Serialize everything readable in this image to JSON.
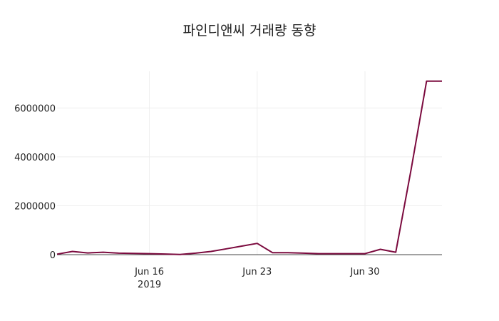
{
  "chart_data": {
    "type": "line",
    "title": "파인디앤씨 거래량 동향",
    "xlabel": "",
    "ylabel": "",
    "x_dates": [
      "2019-06-10",
      "2019-06-11",
      "2019-06-12",
      "2019-06-13",
      "2019-06-14",
      "2019-06-15",
      "2019-06-16",
      "2019-06-17",
      "2019-06-18",
      "2019-06-19",
      "2019-06-20",
      "2019-06-21",
      "2019-06-22",
      "2019-06-23",
      "2019-06-24",
      "2019-06-25",
      "2019-06-26",
      "2019-06-27",
      "2019-06-28",
      "2019-06-29",
      "2019-06-30",
      "2019-07-01",
      "2019-07-02",
      "2019-07-03",
      "2019-07-04",
      "2019-07-05"
    ],
    "series": [
      {
        "name": "거래량",
        "color": "#7b0a3e",
        "values": [
          20000,
          130000,
          70000,
          100000,
          60000,
          50000,
          40000,
          25000,
          10000,
          60000,
          130000,
          240000,
          350000,
          460000,
          80000,
          80000,
          60000,
          40000,
          40000,
          40000,
          40000,
          220000,
          100000,
          3500000,
          7100000,
          7100000
        ]
      }
    ],
    "x_ticks": [
      {
        "date": "2019-06-16",
        "label": "Jun 16",
        "sublabel": "2019"
      },
      {
        "date": "2019-06-23",
        "label": "Jun 23",
        "sublabel": ""
      },
      {
        "date": "2019-06-30",
        "label": "Jun 30",
        "sublabel": ""
      }
    ],
    "y_ticks": [
      {
        "value": 0,
        "label": "0"
      },
      {
        "value": 2000000,
        "label": "2000000"
      },
      {
        "value": 4000000,
        "label": "4000000"
      },
      {
        "value": 6000000,
        "label": "6000000"
      }
    ],
    "xlim": [
      "2019-06-10",
      "2019-07-05"
    ],
    "ylim": [
      0,
      7500000
    ],
    "grid": true,
    "legend": "none",
    "colors": {
      "line": "#7b0a3e",
      "grid": "#eeeeee",
      "axis": "#444444",
      "text": "#222222"
    }
  }
}
